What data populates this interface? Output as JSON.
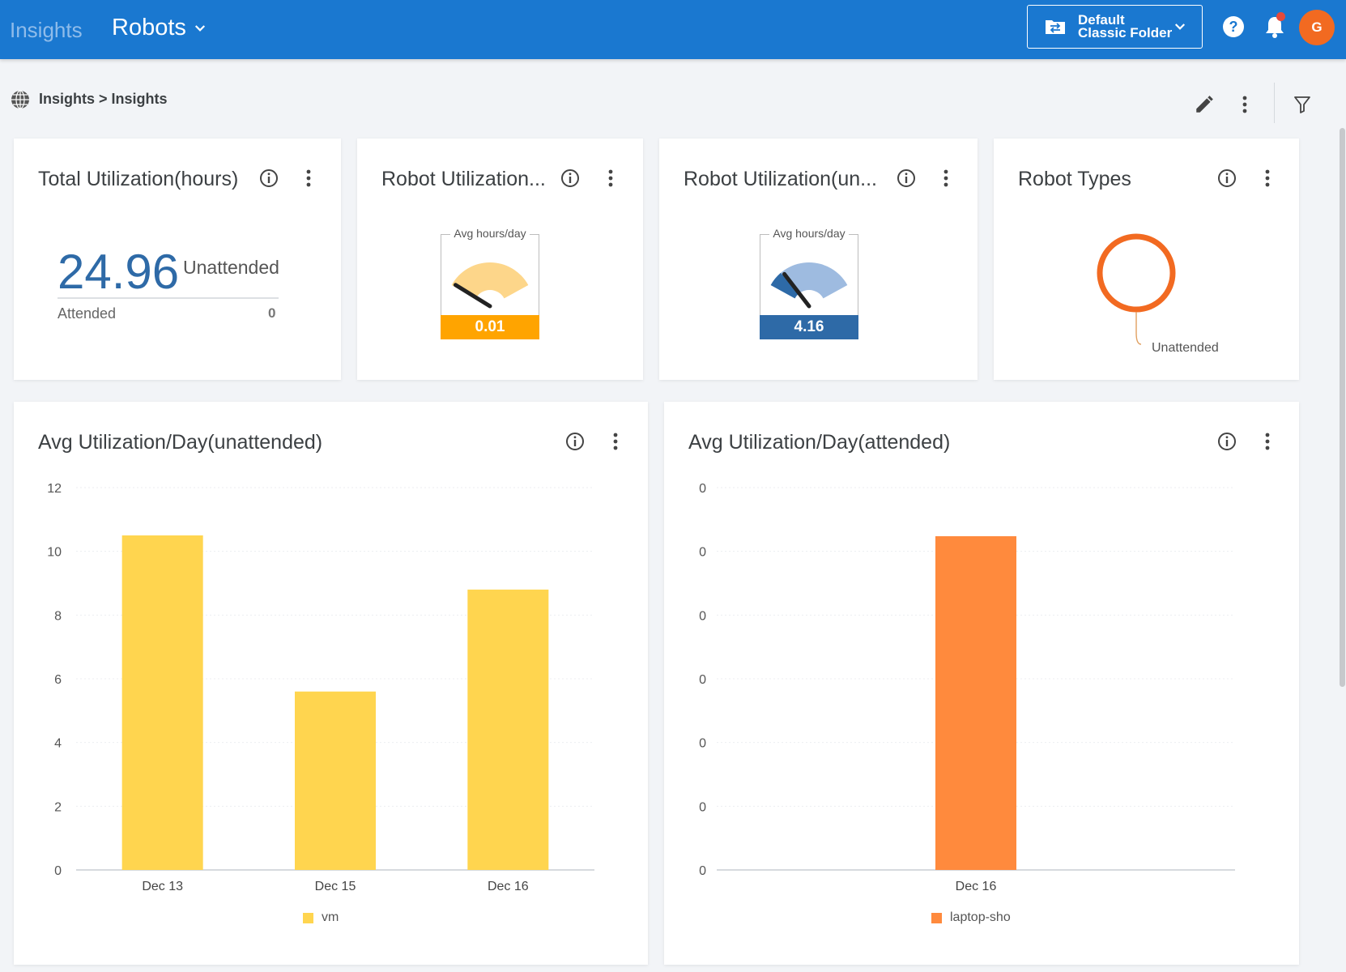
{
  "header": {
    "app_name": "Insights",
    "section": "Robots",
    "folder": {
      "line1": "Default",
      "line2": "Classic Folder"
    },
    "avatar_initial": "G"
  },
  "breadcrumb": "Insights > Insights",
  "widgets": {
    "total_utilization": {
      "title": "Total Utilization(hours)",
      "value": "24.96",
      "value_label": "Unattended",
      "secondary_label": "Attended",
      "secondary_value": "0"
    },
    "robot_util_1": {
      "title": "Robot Utilization...",
      "legend": "Avg hours/day",
      "value": "0.01",
      "level_fraction": 0.0,
      "color": "#ffa400",
      "arc_color": "#fdd68a"
    },
    "robot_util_2": {
      "title": "Robot Utilization(un...",
      "legend": "Avg hours/day",
      "value": "4.16",
      "level_fraction": 0.17,
      "color": "#2e6aa7",
      "arc_color": "#9ebbe0"
    },
    "robot_types": {
      "title": "Robot Types",
      "slice_label": "Unattended",
      "color": "#f26a21"
    }
  },
  "chart_data": [
    {
      "type": "bar",
      "title": "Avg Utilization/Day(unattended)",
      "categories": [
        "Dec 13",
        "Dec 15",
        "Dec 16"
      ],
      "series": [
        {
          "name": "vm",
          "values": [
            10.5,
            5.6,
            8.8
          ],
          "color": "#ffd54f"
        }
      ],
      "ylim": [
        0,
        12
      ],
      "yticks": [
        "0",
        "2",
        "4",
        "6",
        "8",
        "10",
        "12"
      ],
      "grid": true,
      "legend": "bottom-center"
    },
    {
      "type": "bar",
      "title": "Avg Utilization/Day(attended)",
      "categories": [
        "Dec 16"
      ],
      "series": [
        {
          "name": "laptop-sho",
          "values": [
            0
          ],
          "color": "#ff8a3d"
        }
      ],
      "yticks": [
        "0",
        "0",
        "0",
        "0",
        "0",
        "0",
        "0"
      ],
      "grid": true,
      "legend": "bottom-center"
    }
  ]
}
